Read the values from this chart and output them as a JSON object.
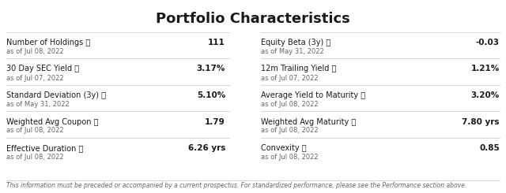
{
  "title": "Portfolio Characteristics",
  "background_color": "#ffffff",
  "title_fontsize": 13,
  "title_fontweight": "bold",
  "left_rows": [
    {
      "label": "Number of Holdings ⓘ",
      "date": "as of Jul 08, 2022",
      "value": "111"
    },
    {
      "label": "30 Day SEC Yield ⓘ",
      "date": "as of Jul 07, 2022",
      "value": "3.17%"
    },
    {
      "label": "Standard Deviation (3y) ⓘ",
      "date": "as of May 31, 2022",
      "value": "5.10%"
    },
    {
      "label": "Weighted Avg Coupon ⓘ",
      "date": "as of Jul 08, 2022",
      "value": "1.79"
    },
    {
      "label": "Effective Duration ⓘ",
      "date": "as of Jul 08, 2022",
      "value": "6.26 yrs"
    }
  ],
  "right_rows": [
    {
      "label": "Equity Beta (3y) ⓘ",
      "date": "as of May 31, 2022",
      "value": "-0.03"
    },
    {
      "label": "12m Trailing Yield ⓘ",
      "date": "as of Jul 07, 2022",
      "value": "1.21%"
    },
    {
      "label": "Average Yield to Maturity ⓘ",
      "date": "as of Jul 08, 2022",
      "value": "3.20%"
    },
    {
      "label": "Weighted Avg Maturity ⓘ",
      "date": "as of Jul 08, 2022",
      "value": "7.80 yrs"
    },
    {
      "label": "Convexity ⓘ",
      "date": "as of Jul 08, 2022",
      "value": "0.85"
    }
  ],
  "footer": "This information must be preceded or accompanied by a current prospectus. For standardized performance, please see the Performance section above.",
  "label_color": "#1a1a1a",
  "date_color": "#666666",
  "value_color": "#1a1a1a",
  "line_color": "#d0d0d0",
  "footer_color": "#666666",
  "label_fontsize": 7.0,
  "date_fontsize": 6.0,
  "value_fontsize": 7.5,
  "footer_fontsize": 5.5
}
